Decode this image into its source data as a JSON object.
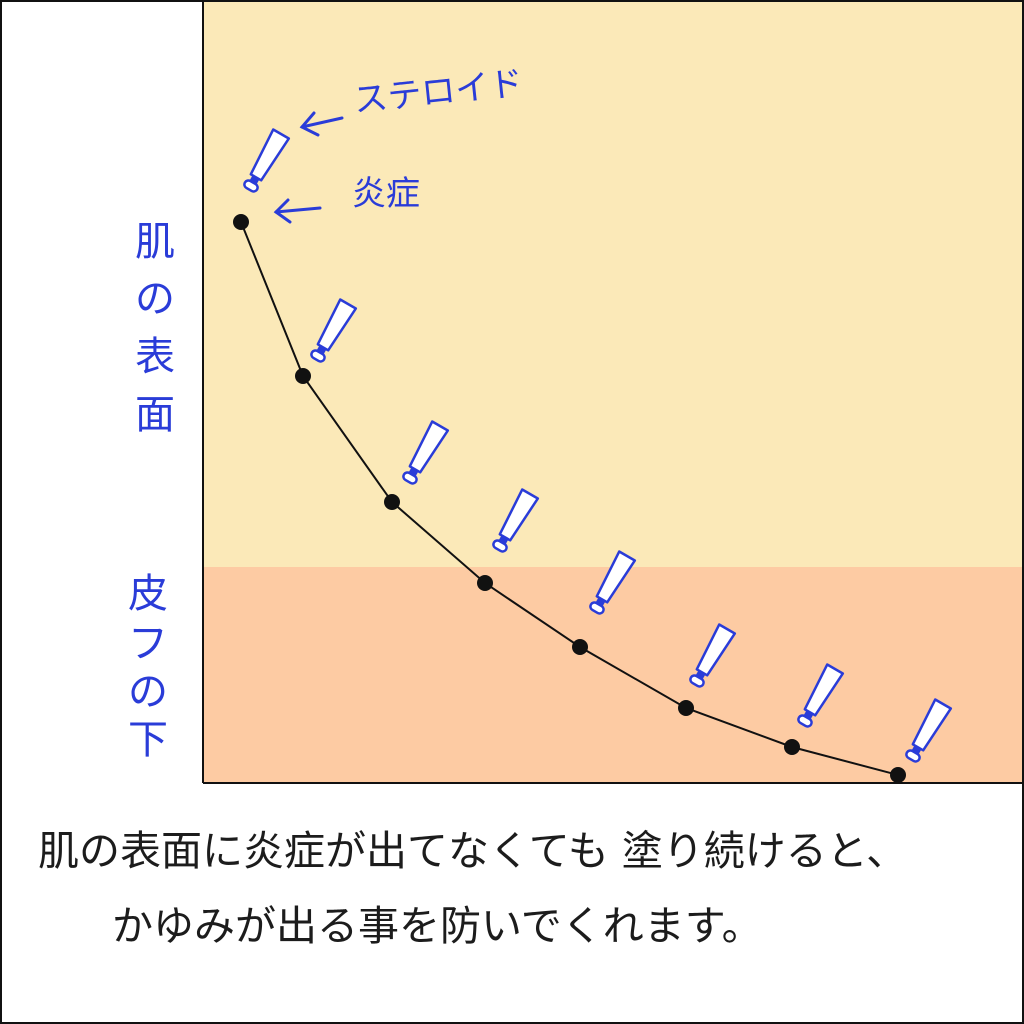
{
  "labels": {
    "steroid": "ステロイド",
    "inflammation": "炎症",
    "surface_chars": [
      "肌",
      "の",
      "表",
      "面"
    ],
    "below_chars": [
      "皮",
      "フ",
      "の",
      "下"
    ]
  },
  "caption": {
    "line1": "肌の表面に炎症が出てなくても 塗り続けると、",
    "line2": "かゆみが出る事を防いでくれます。"
  },
  "colors": {
    "surface_band": "#fbe9b8",
    "below_band": "#fdcba3",
    "label_blue": "#2a3cd8",
    "curve": "#111111"
  },
  "icons": {
    "tube": "ointment-tube-icon",
    "arrow": "left-arrow-icon",
    "point": "dot-marker"
  },
  "series": {
    "curve_points": 8,
    "tubes": 8
  }
}
